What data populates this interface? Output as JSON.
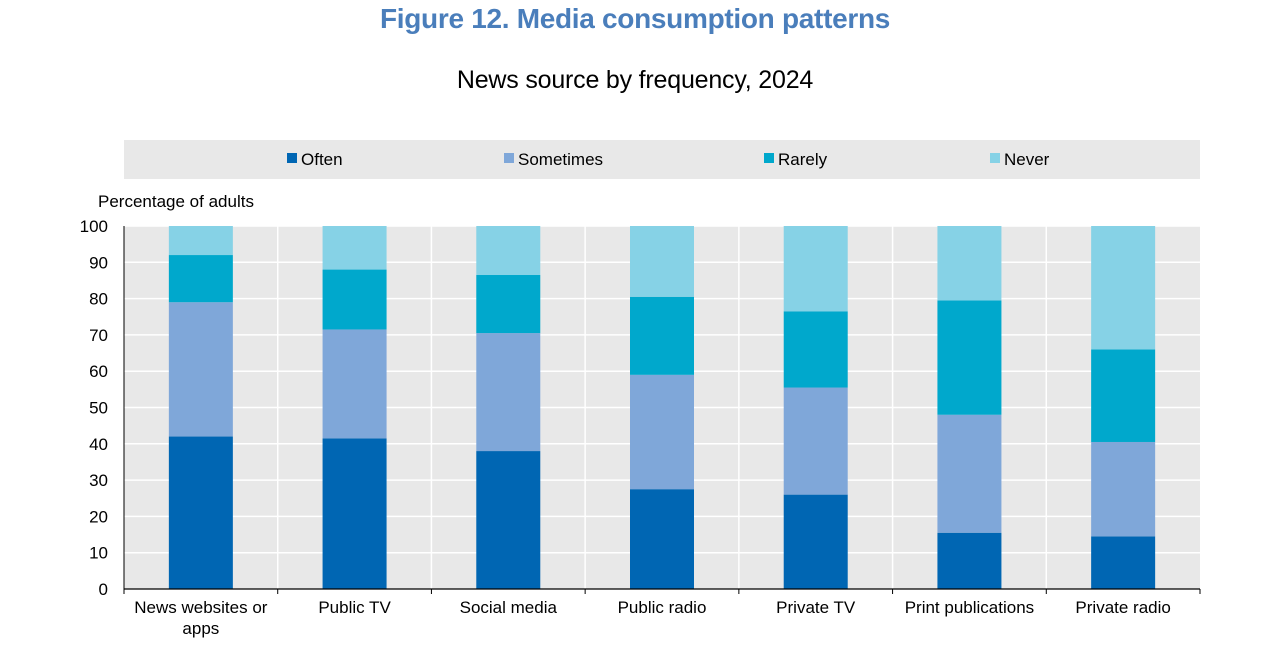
{
  "figure": {
    "title": "Figure 12. Media consumption patterns",
    "subtitle": "News source by frequency, 2024"
  },
  "chart_data": {
    "type": "bar",
    "stacked": true,
    "title": "News source by frequency, 2024",
    "ylabel": "Percentage of adults",
    "xlabel": "",
    "ylim": [
      0,
      100
    ],
    "yticks": [
      0,
      10,
      20,
      30,
      40,
      50,
      60,
      70,
      80,
      90,
      100
    ],
    "grid": true,
    "legend_position": "top",
    "categories": [
      "News websites or apps",
      "Public TV",
      "Social media",
      "Public radio",
      "Private TV",
      "Print publications",
      "Private radio"
    ],
    "category_label_lines": [
      [
        "News websites or",
        "apps"
      ],
      [
        "Public TV"
      ],
      [
        "Social media"
      ],
      [
        "Public radio"
      ],
      [
        "Private TV"
      ],
      [
        "Print publications"
      ],
      [
        "Private radio"
      ]
    ],
    "series": [
      {
        "name": "Often",
        "color": "#0066b3",
        "values": [
          42,
          41.5,
          38,
          27.5,
          26,
          15.5,
          14.5
        ]
      },
      {
        "name": "Sometimes",
        "color": "#7fa7d9",
        "values": [
          37,
          30,
          32.5,
          31.5,
          29.5,
          32.5,
          26
        ]
      },
      {
        "name": "Rarely",
        "color": "#00a8cc",
        "values": [
          13,
          16.5,
          16,
          21.5,
          21,
          31.5,
          25.5
        ]
      },
      {
        "name": "Never",
        "color": "#86d2e6",
        "values": [
          8,
          12,
          13.5,
          19.5,
          23.5,
          20.5,
          34
        ]
      }
    ],
    "plot_background": "#e8e8e8"
  }
}
